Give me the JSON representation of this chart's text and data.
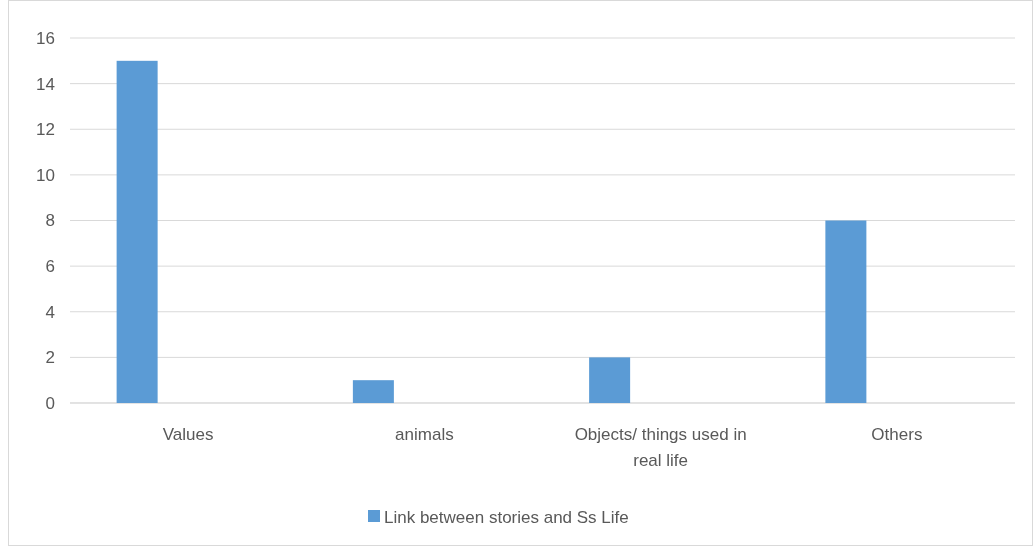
{
  "chart_data": {
    "type": "bar",
    "categories": [
      "Values",
      "animals",
      "Objects/ things used in real life",
      "Others"
    ],
    "series": [
      {
        "name": "Link between stories and Ss Life",
        "color": "#5b9bd5",
        "values": [
          15,
          1,
          2,
          8
        ]
      }
    ],
    "ylim": [
      0,
      16
    ],
    "yticks": [
      0,
      2,
      4,
      6,
      8,
      10,
      12,
      14,
      16
    ],
    "grid": "y",
    "legend": "bottom"
  }
}
